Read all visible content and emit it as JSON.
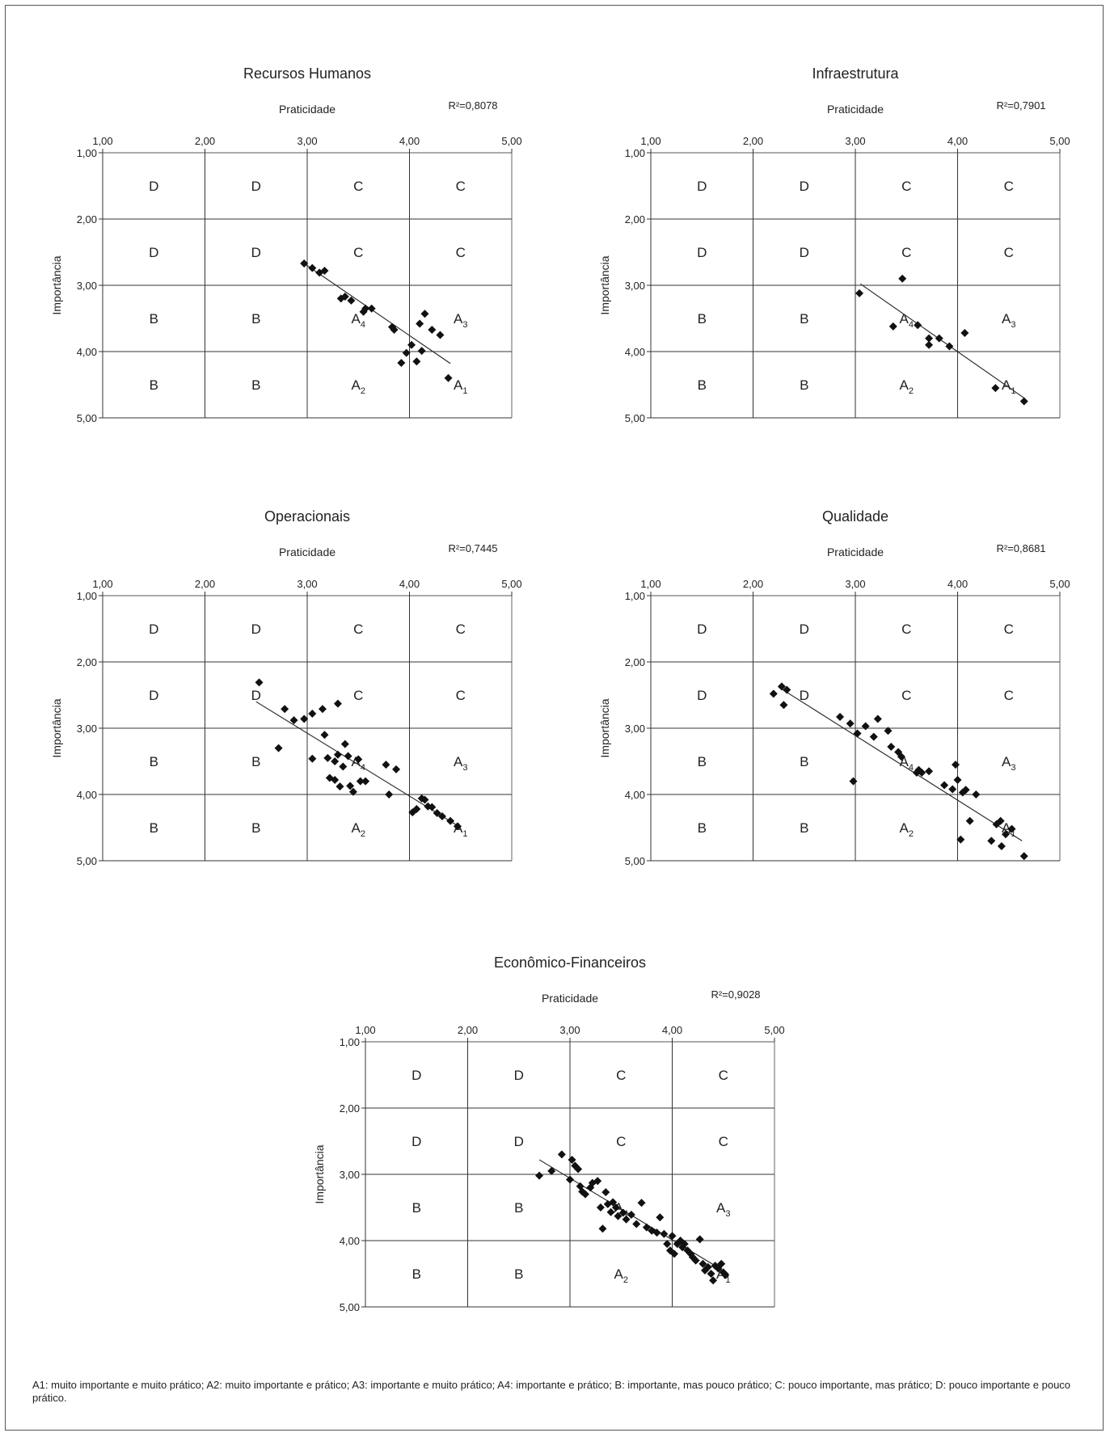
{
  "chart_data": [
    {
      "type": "scatter",
      "title": "Recursos Humanos",
      "xlabel": "Praticidade",
      "ylabel": "Importância",
      "r2": "R²=0,8078",
      "xlim": [
        1,
        5
      ],
      "ylim": [
        1,
        5
      ],
      "ticks": [
        "1,00",
        "2,00",
        "3,00",
        "4,00",
        "5,00"
      ],
      "grid": true,
      "trendline": [
        [
          2.95,
          2.65
        ],
        [
          4.4,
          4.18
        ]
      ],
      "x": [
        2.97,
        3.05,
        3.12,
        3.17,
        3.33,
        3.37,
        3.43,
        3.55,
        3.57,
        3.63,
        3.83,
        3.85,
        3.92,
        3.97,
        4.02,
        4.07,
        4.1,
        4.12,
        4.15,
        4.22,
        4.3,
        4.38
      ],
      "y": [
        2.67,
        2.74,
        2.81,
        2.78,
        3.2,
        3.17,
        3.23,
        3.4,
        3.35,
        3.35,
        3.63,
        3.67,
        4.17,
        4.02,
        3.9,
        4.15,
        3.58,
        3.99,
        3.43,
        3.67,
        3.75,
        4.4
      ]
    },
    {
      "type": "scatter",
      "title": "Infraestrutura",
      "xlabel": "Praticidade",
      "ylabel": "Importância",
      "r2": "R²=0,7901",
      "xlim": [
        1,
        5
      ],
      "ylim": [
        1,
        5
      ],
      "ticks": [
        "1,00",
        "2,00",
        "3,00",
        "4,00",
        "5,00"
      ],
      "grid": true,
      "trendline": [
        [
          3.05,
          2.98
        ],
        [
          4.65,
          4.7
        ]
      ],
      "x": [
        3.04,
        3.37,
        3.46,
        3.61,
        3.72,
        3.72,
        3.82,
        3.92,
        4.07,
        4.37,
        4.65
      ],
      "y": [
        3.12,
        3.62,
        2.9,
        3.6,
        3.8,
        3.9,
        3.8,
        3.92,
        3.72,
        4.55,
        4.75
      ]
    },
    {
      "type": "scatter",
      "title": "Operacionais",
      "xlabel": "Praticidade",
      "ylabel": "Importância",
      "r2": "R²=0,7445",
      "xlim": [
        1,
        5
      ],
      "ylim": [
        1,
        5
      ],
      "ticks": [
        "1,00",
        "2,00",
        "3,00",
        "4,00",
        "5,00"
      ],
      "grid": true,
      "trendline": [
        [
          2.5,
          2.6
        ],
        [
          4.48,
          4.48
        ]
      ],
      "x": [
        2.53,
        2.72,
        2.78,
        2.87,
        2.97,
        3.05,
        3.05,
        3.15,
        3.17,
        3.2,
        3.22,
        3.27,
        3.27,
        3.3,
        3.3,
        3.32,
        3.35,
        3.37,
        3.4,
        3.42,
        3.45,
        3.5,
        3.52,
        3.57,
        3.77,
        3.8,
        3.87,
        4.03,
        4.07,
        4.12,
        4.15,
        4.18,
        4.22,
        4.27,
        4.32,
        4.4,
        4.47
      ],
      "y": [
        2.31,
        3.3,
        2.71,
        2.88,
        2.86,
        2.78,
        3.46,
        2.71,
        3.1,
        3.45,
        3.75,
        3.5,
        3.78,
        2.63,
        3.4,
        3.88,
        3.58,
        3.24,
        3.42,
        3.87,
        3.96,
        3.47,
        3.8,
        3.8,
        3.55,
        4.0,
        3.62,
        4.27,
        4.22,
        4.06,
        4.08,
        4.18,
        4.19,
        4.28,
        4.33,
        4.4,
        4.48
      ]
    },
    {
      "type": "scatter",
      "title": "Qualidade",
      "xlabel": "Praticidade",
      "ylabel": "Importância",
      "r2": "R²=0,8681",
      "xlim": [
        1,
        5
      ],
      "ylim": [
        1,
        5
      ],
      "ticks": [
        "1,00",
        "2,00",
        "3,00",
        "4,00",
        "5,00"
      ],
      "grid": true,
      "trendline": [
        [
          2.25,
          2.38
        ],
        [
          4.63,
          4.7
        ]
      ],
      "x": [
        2.2,
        2.28,
        2.3,
        2.33,
        2.85,
        2.95,
        2.98,
        3.02,
        3.1,
        3.18,
        3.22,
        3.32,
        3.35,
        3.42,
        3.45,
        3.6,
        3.62,
        3.65,
        3.72,
        3.87,
        3.95,
        3.98,
        4.0,
        4.03,
        4.05,
        4.08,
        4.12,
        4.18,
        4.33,
        4.38,
        4.42,
        4.43,
        4.47,
        4.53,
        4.65
      ],
      "y": [
        2.48,
        2.37,
        2.65,
        2.42,
        2.83,
        2.93,
        3.8,
        3.08,
        2.97,
        3.13,
        2.86,
        3.04,
        3.28,
        3.36,
        3.43,
        3.67,
        3.63,
        3.67,
        3.65,
        3.86,
        3.92,
        3.55,
        3.78,
        4.68,
        3.97,
        3.93,
        4.4,
        4.0,
        4.7,
        4.45,
        4.4,
        4.78,
        4.6,
        4.52,
        4.93
      ]
    },
    {
      "type": "scatter",
      "title": "Econômico-Financeiros",
      "xlabel": "Praticidade",
      "ylabel": "Importância",
      "r2": "R²=0,9028",
      "xlim": [
        1,
        5
      ],
      "ylim": [
        1,
        5
      ],
      "ticks": [
        "1,00",
        "2,00",
        "3,00",
        "4,00",
        "5,00"
      ],
      "grid": true,
      "trendline": [
        [
          2.7,
          2.78
        ],
        [
          4.55,
          4.5
        ]
      ],
      "x": [
        2.7,
        2.82,
        2.92,
        3.0,
        3.02,
        3.05,
        3.08,
        3.1,
        3.12,
        3.15,
        3.2,
        3.22,
        3.27,
        3.3,
        3.32,
        3.35,
        3.37,
        3.4,
        3.42,
        3.45,
        3.47,
        3.52,
        3.55,
        3.6,
        3.65,
        3.7,
        3.75,
        3.8,
        3.85,
        3.88,
        3.92,
        3.95,
        3.98,
        4.0,
        4.02,
        4.05,
        4.08,
        4.1,
        4.12,
        4.15,
        4.18,
        4.2,
        4.23,
        4.27,
        4.3,
        4.32,
        4.35,
        4.38,
        4.4,
        4.42,
        4.45,
        4.48,
        4.5,
        4.52
      ],
      "y": [
        3.02,
        2.95,
        2.7,
        3.08,
        2.78,
        2.87,
        2.92,
        3.18,
        3.26,
        3.3,
        3.2,
        3.13,
        3.1,
        3.5,
        3.82,
        3.27,
        3.45,
        3.57,
        3.42,
        3.5,
        3.63,
        3.58,
        3.68,
        3.61,
        3.75,
        3.43,
        3.8,
        3.85,
        3.88,
        3.65,
        3.9,
        4.05,
        4.15,
        3.93,
        4.2,
        4.05,
        4.0,
        4.1,
        4.05,
        4.15,
        4.2,
        4.25,
        4.3,
        3.98,
        4.35,
        4.45,
        4.4,
        4.5,
        4.6,
        4.38,
        4.42,
        4.35,
        4.48,
        4.52
      ]
    }
  ],
  "quadrant_labels": {
    "D": "D",
    "C": "C",
    "B": "B",
    "A": "A",
    "sub1": "1",
    "sub2": "2",
    "sub3": "3",
    "sub4": "4"
  },
  "footnote": "A1: muito importante e muito prático; A2: muito importante e prático; A3: importante e muito prático; A4: importante e prático; B: importante, mas pouco prático; C: pouco importante, mas prático; D: pouco importante e pouco prático."
}
